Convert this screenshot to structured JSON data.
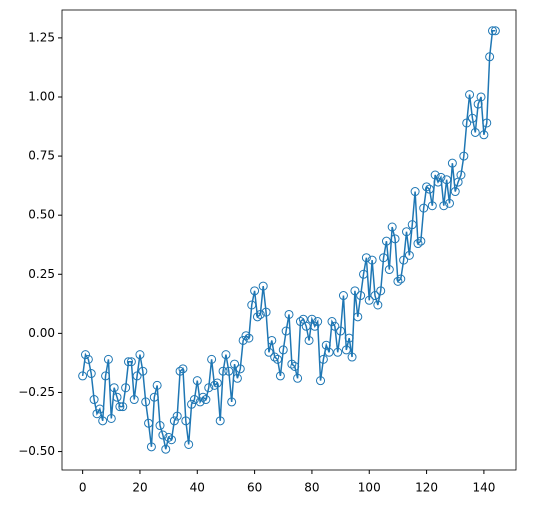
{
  "chart_data": {
    "type": "line",
    "color": "#1f77b4",
    "marker": "open-circle",
    "x": [
      0,
      1,
      2,
      3,
      4,
      5,
      6,
      7,
      8,
      9,
      10,
      11,
      12,
      13,
      14,
      15,
      16,
      17,
      18,
      19,
      20,
      21,
      22,
      23,
      24,
      25,
      26,
      27,
      28,
      29,
      30,
      31,
      32,
      33,
      34,
      35,
      36,
      37,
      38,
      39,
      40,
      41,
      42,
      43,
      44,
      45,
      46,
      47,
      48,
      49,
      50,
      51,
      52,
      53,
      54,
      55,
      56,
      57,
      58,
      59,
      60,
      61,
      62,
      63,
      64,
      65,
      66,
      67,
      68,
      69,
      70,
      71,
      72,
      73,
      74,
      75,
      76,
      77,
      78,
      79,
      80,
      81,
      82,
      83,
      84,
      85,
      86,
      87,
      88,
      89,
      90,
      91,
      92,
      93,
      94,
      95,
      96,
      97,
      98,
      99,
      100,
      101,
      102,
      103,
      104,
      105,
      106,
      107,
      108,
      109,
      110,
      111,
      112,
      113,
      114,
      115,
      116,
      117,
      118,
      119,
      120,
      121,
      122,
      123,
      124,
      125,
      126,
      127,
      128,
      129,
      130,
      131,
      132,
      133,
      134,
      135,
      136,
      137,
      138,
      139,
      140,
      141,
      142,
      143,
      144
    ],
    "values": [
      -0.18,
      -0.09,
      -0.11,
      -0.17,
      -0.28,
      -0.34,
      -0.32,
      -0.37,
      -0.18,
      -0.11,
      -0.36,
      -0.23,
      -0.27,
      -0.31,
      -0.31,
      -0.23,
      -0.12,
      -0.12,
      -0.28,
      -0.18,
      -0.09,
      -0.16,
      -0.29,
      -0.38,
      -0.48,
      -0.27,
      -0.22,
      -0.39,
      -0.43,
      -0.49,
      -0.44,
      -0.45,
      -0.37,
      -0.35,
      -0.16,
      -0.15,
      -0.37,
      -0.47,
      -0.3,
      -0.28,
      -0.2,
      -0.29,
      -0.27,
      -0.28,
      -0.23,
      -0.11,
      -0.22,
      -0.21,
      -0.37,
      -0.16,
      -0.09,
      -0.16,
      -0.29,
      -0.13,
      -0.19,
      -0.15,
      -0.03,
      -0.01,
      -0.02,
      0.12,
      0.18,
      0.07,
      0.08,
      0.2,
      0.09,
      -0.08,
      -0.03,
      -0.1,
      -0.11,
      -0.18,
      -0.07,
      0.01,
      0.08,
      -0.13,
      -0.14,
      -0.19,
      0.05,
      0.06,
      0.03,
      -0.03,
      0.06,
      0.03,
      0.05,
      -0.2,
      -0.11,
      -0.05,
      -0.08,
      0.05,
      0.03,
      -0.08,
      0.01,
      0.16,
      -0.07,
      -0.02,
      -0.1,
      0.18,
      0.07,
      0.16,
      0.25,
      0.32,
      0.14,
      0.31,
      0.16,
      0.12,
      0.18,
      0.32,
      0.39,
      0.27,
      0.45,
      0.4,
      0.22,
      0.23,
      0.31,
      0.43,
      0.33,
      0.46,
      0.6,
      0.38,
      0.39,
      0.53,
      0.62,
      0.61,
      0.54,
      0.67,
      0.64,
      0.66,
      0.54,
      0.65,
      0.55,
      0.72,
      0.6,
      0.64,
      0.67,
      0.75,
      0.89,
      1.01,
      0.91,
      0.85,
      0.97,
      1.0,
      0.84,
      0.89,
      1.17,
      1.28,
      1.28
    ],
    "xlim": [
      -7.2,
      151.2
    ],
    "ylim": [
      -0.578,
      1.368
    ],
    "xticks": [
      0,
      20,
      40,
      60,
      80,
      100,
      120,
      140
    ],
    "yticks": [
      {
        "value": -0.5,
        "label": "−0.50"
      },
      {
        "value": -0.25,
        "label": "−0.25"
      },
      {
        "value": 0,
        "label": "0.00"
      },
      {
        "value": 0.25,
        "label": "0.25"
      },
      {
        "value": 0.5,
        "label": "0.50"
      },
      {
        "value": 0.75,
        "label": "0.75"
      },
      {
        "value": 1,
        "label": "1.00"
      },
      {
        "value": 1.25,
        "label": "1.25"
      }
    ],
    "grid": false
  }
}
